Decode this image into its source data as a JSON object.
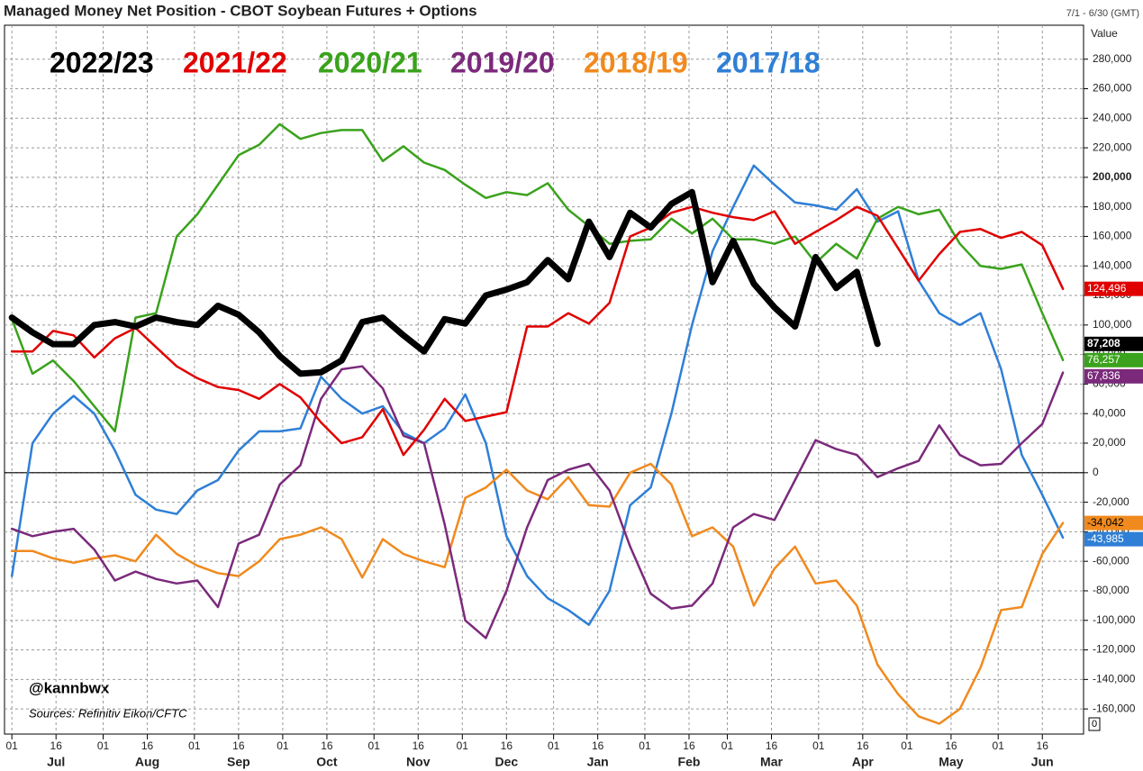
{
  "chart_data": {
    "type": "line",
    "title": "Managed Money Net Position - CBOT Soybean Futures + Options",
    "subtitle": "7/1 - 6/30 (GMT)",
    "y_axis_label": "Value",
    "annotations": [
      "@kannbwx",
      "Sources: Refinitiv Eikon/CFTC"
    ],
    "corner_label": "0",
    "grid": true,
    "zero_line": true,
    "x": [
      0,
      7,
      14,
      21,
      28,
      35,
      42,
      49,
      56,
      63,
      70,
      77,
      84,
      91,
      98,
      105,
      112,
      119,
      126,
      133,
      140,
      147,
      154,
      161,
      168,
      175,
      182,
      189,
      196,
      203,
      210,
      217,
      224,
      231,
      238,
      245,
      252,
      259,
      266,
      273,
      280,
      287,
      294,
      301,
      308,
      315,
      322,
      329,
      336,
      343,
      350,
      357
    ],
    "xlim": [
      -2.5,
      364
    ],
    "xticks": [
      {
        "value": 0,
        "label": "01"
      },
      {
        "value": 15,
        "label": "16"
      },
      {
        "value": 31,
        "label": "01"
      },
      {
        "value": 46,
        "label": "16"
      },
      {
        "value": 62,
        "label": "01"
      },
      {
        "value": 77,
        "label": "16"
      },
      {
        "value": 92,
        "label": "01"
      },
      {
        "value": 107,
        "label": "16"
      },
      {
        "value": 123,
        "label": "01"
      },
      {
        "value": 138,
        "label": "16"
      },
      {
        "value": 153,
        "label": "01"
      },
      {
        "value": 168,
        "label": "16"
      },
      {
        "value": 184,
        "label": "01"
      },
      {
        "value": 199,
        "label": "16"
      },
      {
        "value": 215,
        "label": "01"
      },
      {
        "value": 230,
        "label": "16"
      },
      {
        "value": 243,
        "label": "01"
      },
      {
        "value": 258,
        "label": "16"
      },
      {
        "value": 274,
        "label": "01"
      },
      {
        "value": 289,
        "label": "16"
      },
      {
        "value": 304,
        "label": "01"
      },
      {
        "value": 319,
        "label": "16"
      },
      {
        "value": 335,
        "label": "01"
      },
      {
        "value": 350,
        "label": "16"
      }
    ],
    "x_months": [
      {
        "value": 15,
        "label": "Jul"
      },
      {
        "value": 46,
        "label": "Aug"
      },
      {
        "value": 77,
        "label": "Sep"
      },
      {
        "value": 107,
        "label": "Oct"
      },
      {
        "value": 138,
        "label": "Nov"
      },
      {
        "value": 168,
        "label": "Dec"
      },
      {
        "value": 199,
        "label": "Jan"
      },
      {
        "value": 230,
        "label": "Feb"
      },
      {
        "value": 258,
        "label": "Mar"
      },
      {
        "value": 289,
        "label": "Apr"
      },
      {
        "value": 319,
        "label": "May"
      },
      {
        "value": 350,
        "label": "Jun"
      }
    ],
    "ylim": [
      -177000,
      303000
    ],
    "yticks": [
      {
        "value": -160000,
        "label": "-160,000"
      },
      {
        "value": -140000,
        "label": "-140,000"
      },
      {
        "value": -120000,
        "label": "-120,000"
      },
      {
        "value": -100000,
        "label": "-100,000"
      },
      {
        "value": -80000,
        "label": "-80,000"
      },
      {
        "value": -60000,
        "label": "-60,000"
      },
      {
        "value": -40000,
        "label": "-40,000"
      },
      {
        "value": -20000,
        "label": "-20,000"
      },
      0,
      {
        "value": 20000,
        "label": "20,000"
      },
      {
        "value": 40000,
        "label": "40,000"
      },
      {
        "value": 60000,
        "label": "60,000"
      },
      {
        "value": 80000,
        "label": "80,000"
      },
      {
        "value": 100000,
        "label": "100,000"
      },
      {
        "value": 120000,
        "label": "120,000"
      },
      {
        "value": 140000,
        "label": "140,000"
      },
      {
        "value": 160000,
        "label": "160,000"
      },
      {
        "value": 180000,
        "label": "180,000"
      },
      {
        "value": 200000,
        "label": "200,000"
      },
      {
        "value": 220000,
        "label": "220,000"
      },
      {
        "value": 240000,
        "label": "240,000"
      },
      {
        "value": 260000,
        "label": "260,000"
      },
      {
        "value": 280000,
        "label": "280,000"
      }
    ],
    "series": [
      {
        "name": "2022/23",
        "color": "#000000",
        "width": 7,
        "values": [
          105000,
          95000,
          87000,
          87000,
          100000,
          102000,
          99000,
          105000,
          102000,
          100000,
          113000,
          107000,
          95000,
          79000,
          67000,
          68000,
          76000,
          102000,
          105000,
          93000,
          82000,
          104000,
          101000,
          120000,
          124000,
          129000,
          144000,
          131000,
          170000,
          146000,
          176000,
          166000,
          182000,
          190000,
          129000,
          157000,
          128000,
          112000,
          99000,
          146000,
          125000,
          136000,
          87208,
          null,
          null,
          null,
          null,
          null,
          null,
          null,
          null,
          null
        ],
        "value_labels": [
          null,
          null,
          null,
          null,
          null,
          null,
          null,
          null,
          null,
          null,
          null,
          null,
          null,
          null,
          null,
          null,
          null,
          null,
          null,
          null,
          null,
          null,
          null,
          null,
          null,
          null,
          null,
          null,
          null,
          null,
          null,
          null,
          null,
          null,
          null,
          null,
          null,
          null,
          null,
          null,
          null,
          null,
          "87,208",
          null,
          null,
          null,
          null,
          null,
          null,
          null,
          null,
          null
        ]
      },
      {
        "name": "2021/22",
        "color": "#e00000",
        "width": 2.5,
        "values": [
          82000,
          82000,
          96000,
          93000,
          78000,
          91000,
          98000,
          85000,
          72000,
          64000,
          58000,
          56000,
          50000,
          60000,
          51000,
          34000,
          20000,
          24000,
          43000,
          12000,
          29000,
          50000,
          35000,
          38000,
          41000,
          99000,
          99000,
          108000,
          101000,
          115000,
          160000,
          166000,
          176000,
          180000,
          176000,
          173000,
          171000,
          177000,
          155000,
          163000,
          171000,
          180000,
          174000,
          152000,
          130000,
          148000,
          163000,
          165000,
          159000,
          163000,
          154000,
          124496
        ],
        "value_labels": [
          null,
          null,
          null,
          null,
          null,
          null,
          null,
          null,
          null,
          null,
          null,
          null,
          null,
          null,
          null,
          null,
          null,
          null,
          null,
          null,
          null,
          null,
          null,
          null,
          null,
          null,
          null,
          null,
          null,
          null,
          null,
          null,
          null,
          null,
          null,
          null,
          null,
          null,
          null,
          null,
          null,
          null,
          null,
          null,
          null,
          null,
          null,
          null,
          null,
          null,
          null,
          "124,496"
        ]
      },
      {
        "name": "2020/21",
        "color": "#3aa21c",
        "width": 2.5,
        "values": [
          104000,
          67000,
          76000,
          62000,
          45000,
          28000,
          105000,
          108000,
          160000,
          175000,
          195000,
          215000,
          222000,
          236000,
          226000,
          230000,
          232000,
          232000,
          211000,
          221000,
          210000,
          205000,
          195000,
          186000,
          190000,
          188000,
          196000,
          178000,
          167000,
          155000,
          157000,
          158000,
          172000,
          162000,
          172000,
          158000,
          158000,
          155000,
          160000,
          142000,
          155000,
          145000,
          172000,
          180000,
          175000,
          178000,
          155000,
          140000,
          138000,
          141000,
          108000,
          76257
        ],
        "value_labels": [
          null,
          null,
          null,
          null,
          null,
          null,
          null,
          null,
          null,
          null,
          null,
          null,
          null,
          null,
          null,
          null,
          null,
          null,
          null,
          null,
          null,
          null,
          null,
          null,
          null,
          null,
          null,
          null,
          null,
          null,
          null,
          null,
          null,
          null,
          null,
          null,
          null,
          null,
          null,
          null,
          null,
          null,
          null,
          null,
          null,
          null,
          null,
          null,
          null,
          null,
          null,
          "76,257"
        ]
      },
      {
        "name": "2019/20",
        "color": "#7b2a7b",
        "width": 2.5,
        "values": [
          -38000,
          -43000,
          -40000,
          -38000,
          -52000,
          -73000,
          -67000,
          -72000,
          -75000,
          -73000,
          -91000,
          -48000,
          -42000,
          -8000,
          5000,
          50000,
          70000,
          72000,
          57000,
          25000,
          20000,
          -35000,
          -100000,
          -112000,
          -80000,
          -37000,
          -5000,
          2000,
          6000,
          -12000,
          -50000,
          -82000,
          -92000,
          -90000,
          -75000,
          -37000,
          -28000,
          -32000,
          -5000,
          22000,
          16000,
          12000,
          -3000,
          3000,
          8000,
          32000,
          12000,
          5000,
          6000,
          20000,
          33000,
          67836
        ],
        "value_labels": [
          null,
          null,
          null,
          null,
          null,
          null,
          null,
          null,
          null,
          null,
          null,
          null,
          null,
          null,
          null,
          null,
          null,
          null,
          null,
          null,
          null,
          null,
          null,
          null,
          null,
          null,
          null,
          null,
          null,
          null,
          null,
          null,
          null,
          null,
          null,
          null,
          null,
          null,
          null,
          null,
          null,
          null,
          null,
          null,
          null,
          null,
          null,
          null,
          null,
          null,
          null,
          "67,836"
        ]
      },
      {
        "name": "2018/19",
        "color": "#f08a1e",
        "width": 2.5,
        "values": [
          -53000,
          -53000,
          -58000,
          -61000,
          -58000,
          -56000,
          -60000,
          -42000,
          -55000,
          -63000,
          -68000,
          -70000,
          -60000,
          -45000,
          -42000,
          -37000,
          -45000,
          -71000,
          -45000,
          -55000,
          -60000,
          -64000,
          -17000,
          -10000,
          2000,
          -12000,
          -18000,
          -3000,
          -22000,
          -23000,
          0,
          6000,
          -8000,
          -43000,
          -37000,
          -50000,
          -90000,
          -65000,
          -50000,
          -75000,
          -73000,
          -90000,
          -130000,
          -150000,
          -165000,
          -170000,
          -160000,
          -132000,
          -93000,
          -91000,
          -55000,
          -34042
        ],
        "value_labels": [
          null,
          null,
          null,
          null,
          null,
          null,
          null,
          null,
          null,
          null,
          null,
          null,
          null,
          null,
          null,
          null,
          null,
          null,
          null,
          null,
          null,
          null,
          null,
          null,
          null,
          null,
          null,
          null,
          null,
          null,
          null,
          null,
          null,
          null,
          null,
          null,
          null,
          null,
          null,
          null,
          null,
          null,
          null,
          null,
          null,
          null,
          null,
          null,
          null,
          null,
          null,
          "-34,042"
        ]
      },
      {
        "name": "2017/18",
        "color": "#2f7fd6",
        "width": 2.5,
        "values": [
          -70000,
          20000,
          40000,
          52000,
          40000,
          15000,
          -15000,
          -25000,
          -28000,
          -12000,
          -5000,
          15000,
          28000,
          28000,
          30000,
          65000,
          50000,
          40000,
          45000,
          27000,
          20000,
          30000,
          53000,
          20000,
          -43000,
          -70000,
          -85000,
          -93000,
          -103000,
          -80000,
          -22000,
          -10000,
          40000,
          100000,
          150000,
          180000,
          208000,
          195000,
          183000,
          181000,
          178000,
          192000,
          170000,
          177000,
          130000,
          108000,
          100000,
          108000,
          70000,
          12000,
          -15000,
          -43985
        ],
        "value_labels": [
          null,
          null,
          null,
          null,
          null,
          null,
          null,
          null,
          null,
          null,
          null,
          null,
          null,
          null,
          null,
          null,
          null,
          null,
          null,
          null,
          null,
          null,
          null,
          null,
          null,
          null,
          null,
          null,
          null,
          null,
          null,
          null,
          null,
          null,
          null,
          null,
          null,
          null,
          null,
          null,
          null,
          null,
          null,
          null,
          null,
          null,
          null,
          null,
          null,
          null,
          null,
          "-43,985"
        ]
      }
    ]
  }
}
